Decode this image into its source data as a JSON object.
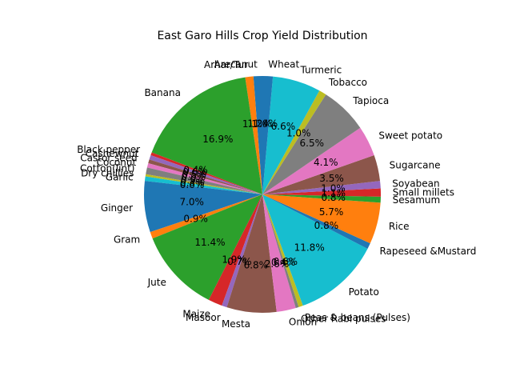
{
  "chart_data": {
    "type": "pie",
    "title": "East Garo Hills Crop Yield Distribution",
    "start_angle_deg": 90,
    "direction": "counterclockwise",
    "colors": [
      "#1f77b4",
      "#ff7f0e",
      "#2ca02c",
      "#d62728",
      "#9467bd",
      "#8c564b",
      "#e377c2",
      "#7f7f7f",
      "#bcbd22",
      "#17becf"
    ],
    "slices": [
      {
        "label": "Arecanut",
        "value": 1.2
      },
      {
        "label": "Arhar/Tur",
        "value": 1.1
      },
      {
        "label": "Banana",
        "value": 16.7
      },
      {
        "label": "Black pepper",
        "value": 0.4
      },
      {
        "label": "Cashewnut",
        "value": 0.6
      },
      {
        "label": "Castor seed",
        "value": 0.5
      },
      {
        "label": "Coconut",
        "value": 0.6
      },
      {
        "label": "Cotton(lint)",
        "value": 0.9
      },
      {
        "label": "Dry chillies",
        "value": 0.3
      },
      {
        "label": "Garlic",
        "value": 0.6
      },
      {
        "label": "Ginger",
        "value": 6.9
      },
      {
        "label": "Gram",
        "value": 0.9
      },
      {
        "label": "Jute",
        "value": 11.3
      },
      {
        "label": "Maize",
        "value": 1.9
      },
      {
        "label": "Masoor",
        "value": 0.7
      },
      {
        "label": "Mesta",
        "value": 6.7
      },
      {
        "label": "Onion",
        "value": 2.6
      },
      {
        "label": "Other Rabi pulses",
        "value": 0.4
      },
      {
        "label": "Peas & beans (Pulses)",
        "value": 0.6
      },
      {
        "label": "Potato",
        "value": 11.7
      },
      {
        "label": "Rapeseed &Mustard",
        "value": 0.8
      },
      {
        "label": "Rice",
        "value": 5.6
      },
      {
        "label": "Sesamum",
        "value": 0.8
      },
      {
        "label": "Small millets",
        "value": 1.1
      },
      {
        "label": "Soyabean",
        "value": 1.0
      },
      {
        "label": "Sugarcane",
        "value": 3.5
      },
      {
        "label": "Sweet potato",
        "value": 4.1
      },
      {
        "label": "Tapioca",
        "value": 6.4
      },
      {
        "label": "Tobacco",
        "value": 1.0
      },
      {
        "label": "Turmeric",
        "value": 6.5
      },
      {
        "label": "Wheat",
        "value": 1.4
      }
    ]
  }
}
